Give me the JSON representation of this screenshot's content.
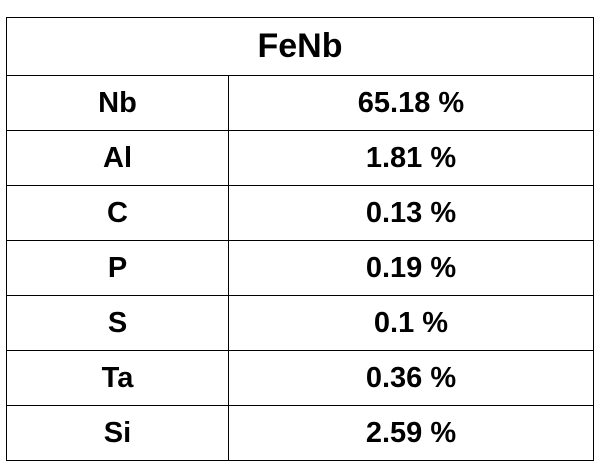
{
  "table": {
    "title": "FeNb",
    "rows": [
      {
        "element": "Nb",
        "value": "65.18 %"
      },
      {
        "element": "Al",
        "value": "1.81 %"
      },
      {
        "element": "C",
        "value": "0.13 %"
      },
      {
        "element": "P",
        "value": "0.19 %"
      },
      {
        "element": "S",
        "value": "0.1 %"
      },
      {
        "element": "Ta",
        "value": "0.36 %"
      },
      {
        "element": "Si",
        "value": "2.59 %"
      }
    ]
  }
}
